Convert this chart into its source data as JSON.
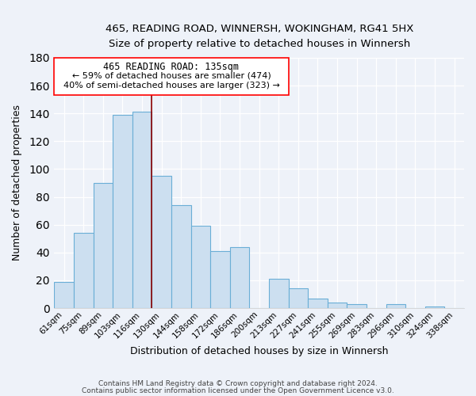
{
  "title": "465, READING ROAD, WINNERSH, WOKINGHAM, RG41 5HX",
  "subtitle": "Size of property relative to detached houses in Winnersh",
  "xlabel": "Distribution of detached houses by size in Winnersh",
  "ylabel": "Number of detached properties",
  "bar_labels": [
    "61sqm",
    "75sqm",
    "89sqm",
    "103sqm",
    "116sqm",
    "130sqm",
    "144sqm",
    "158sqm",
    "172sqm",
    "186sqm",
    "200sqm",
    "213sqm",
    "227sqm",
    "241sqm",
    "255sqm",
    "269sqm",
    "283sqm",
    "296sqm",
    "310sqm",
    "324sqm",
    "338sqm"
  ],
  "bar_values": [
    19,
    54,
    90,
    139,
    141,
    95,
    74,
    59,
    41,
    44,
    0,
    21,
    14,
    7,
    4,
    3,
    0,
    3,
    0,
    1,
    0
  ],
  "bar_color": "#ccdff0",
  "bar_edgecolor": "#6aaed6",
  "ylim": [
    0,
    180
  ],
  "yticks": [
    0,
    20,
    40,
    60,
    80,
    100,
    120,
    140,
    160,
    180
  ],
  "red_line_index": 5,
  "annotation_title": "465 READING ROAD: 135sqm",
  "annotation_line1": "← 59% of detached houses are smaller (474)",
  "annotation_line2": "40% of semi-detached houses are larger (323) →",
  "footer1": "Contains HM Land Registry data © Crown copyright and database right 2024.",
  "footer2": "Contains public sector information licensed under the Open Government Licence v3.0.",
  "background_color": "#eef2f9",
  "grid_color": "#ffffff"
}
